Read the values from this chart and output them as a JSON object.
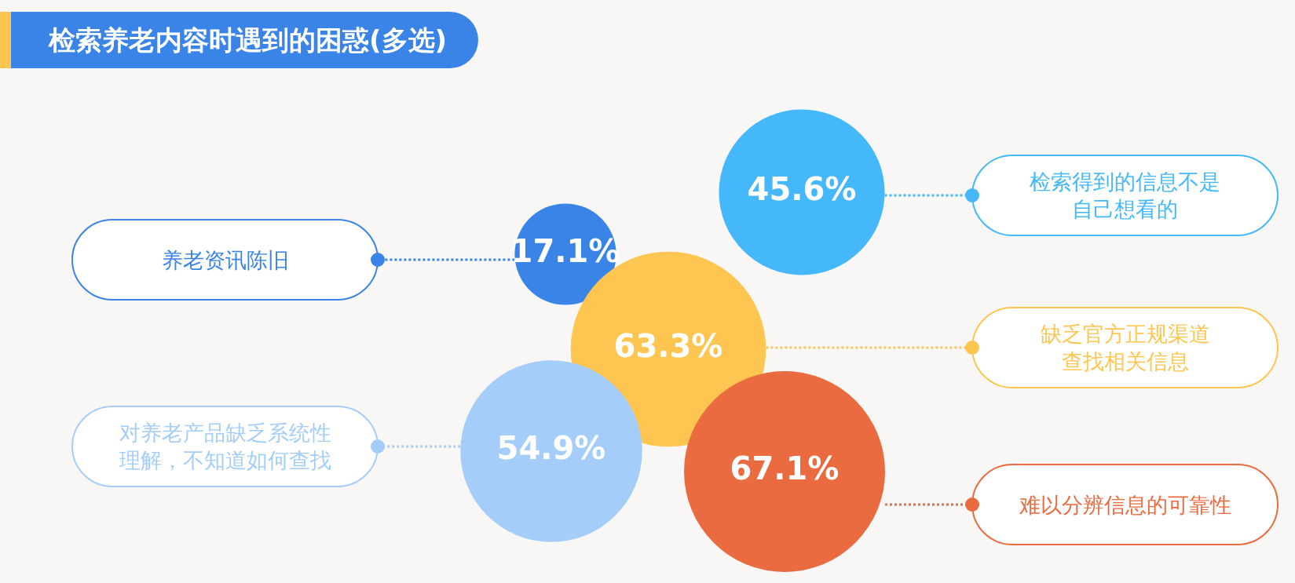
{
  "chart_data": {
    "type": "other",
    "title": "检索养老内容时遇到的困惑(多选)",
    "categories": [
      "检索得到的信息不是自己想看的",
      "养老资讯陈旧",
      "缺乏官方正规渠道查找相关信息",
      "对养老产品缺乏系统性理解，不知道如何查找",
      "难以分辨信息的可靠性"
    ],
    "values": [
      45.6,
      17.1,
      63.3,
      54.9,
      67.1
    ],
    "value_labels": [
      "45.6%",
      "17.1%",
      "63.3%",
      "54.9%",
      "67.1%"
    ],
    "colors": [
      "#45b8fb",
      "#3a84e8",
      "#fec651",
      "#a4cdfa",
      "#ea6b3f"
    ]
  }
}
